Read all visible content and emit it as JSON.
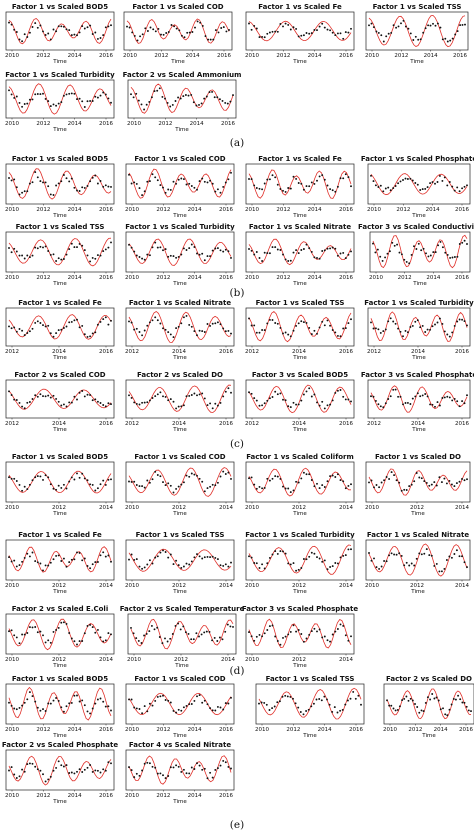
{
  "colors": {
    "model_line": "#e0302a",
    "observed_points": "#111111",
    "axes": "#222222"
  },
  "panel_groups": [
    {
      "label": "(a)",
      "panels": [
        {
          "title": "Factor 1 vs Scaled BOD5",
          "xticks": [
            "2010",
            "2012",
            "2014",
            "2016"
          ],
          "xlabel": "Time"
        },
        {
          "title": "Factor 1 vs Scaled COD",
          "xticks": [
            "2010",
            "2012",
            "2014",
            "2016"
          ],
          "xlabel": "Time"
        },
        {
          "title": "Factor 1 vs Scaled Fe",
          "xticks": [
            "2010",
            "2012",
            "2014",
            "2016"
          ],
          "xlabel": "Time"
        },
        {
          "title": "Factor 1 vs Scaled TSS",
          "xticks": [
            "2010",
            "2012",
            "2014",
            "2016"
          ],
          "xlabel": "Time"
        },
        {
          "title": "Factor 1 vs Scaled Turbidity",
          "xticks": [
            "2010",
            "2012",
            "2014",
            "2016"
          ],
          "xlabel": "Time"
        },
        {
          "title": "Factor 2 vs Scaled Ammonium",
          "xticks": [
            "2010",
            "2012",
            "2014",
            "2016"
          ],
          "xlabel": "Time"
        }
      ]
    },
    {
      "label": "(b)",
      "panels": [
        {
          "title": "Factor 1 vs Scaled BOD5",
          "xticks": [
            "2010",
            "2012",
            "2014",
            "2016"
          ],
          "xlabel": "Time"
        },
        {
          "title": "Factor 1 vs Scaled COD",
          "xticks": [
            "2010",
            "2012",
            "2014",
            "2016"
          ],
          "xlabel": "Time"
        },
        {
          "title": "Factor 1 vs Scaled Fe",
          "xticks": [
            "2010",
            "2012",
            "2014",
            "2016"
          ],
          "xlabel": "Time"
        },
        {
          "title": "Factor 1 vs Scaled Phosphate",
          "xticks": [
            "2010",
            "2012",
            "2014",
            "2016"
          ],
          "xlabel": "Time"
        },
        {
          "title": "Factor 1 vs Scaled TSS",
          "xticks": [
            "2010",
            "2012",
            "2014",
            "2016"
          ],
          "xlabel": "Time"
        },
        {
          "title": "Factor 1 vs Scaled Turbidity",
          "xticks": [
            "2010",
            "2012",
            "2014",
            "2016"
          ],
          "xlabel": "Time"
        },
        {
          "title": "Factor 1 vs Scaled Nitrate",
          "xticks": [
            "2010",
            "2012",
            "2014",
            "2016"
          ],
          "xlabel": "Time"
        },
        {
          "title": "Factor 3 vs Scaled Conductivity",
          "xticks": [
            "2010",
            "2012",
            "2014",
            "2016"
          ],
          "xlabel": "Time"
        }
      ]
    },
    {
      "label": "(c)",
      "panels": [
        {
          "title": "Factor 1 vs Scaled Fe",
          "xticks": [
            "2012",
            "2014",
            "2016"
          ],
          "xlabel": "Time"
        },
        {
          "title": "Factor 1 vs Scaled Nitrate",
          "xticks": [
            "2012",
            "2014",
            "2016"
          ],
          "xlabel": "Time"
        },
        {
          "title": "Factor 1 vs Scaled TSS",
          "xticks": [
            "2012",
            "2014",
            "2016"
          ],
          "xlabel": "Time"
        },
        {
          "title": "Factor 1 vs Scaled Turbidity",
          "xticks": [
            "2012",
            "2014",
            "2016"
          ],
          "xlabel": "Time"
        },
        {
          "title": "Factor 2 vs Scaled COD",
          "xticks": [
            "2012",
            "2014",
            "2016"
          ],
          "xlabel": "Time"
        },
        {
          "title": "Factor 2 vs Scaled DO",
          "xticks": [
            "2012",
            "2014",
            "2016"
          ],
          "xlabel": "Time"
        },
        {
          "title": "Factor 3 vs Scaled BOD5",
          "xticks": [
            "2012",
            "2014",
            "2016"
          ],
          "xlabel": "Time"
        },
        {
          "title": "Factor 3 vs Scaled Phosphate",
          "xticks": [
            "2012",
            "2014",
            "2016"
          ],
          "xlabel": "Time"
        }
      ]
    },
    {
      "label": "(d)",
      "panels": [
        {
          "title": "Factor 1 vs Scaled BOD5",
          "xticks": [
            "2010",
            "2012",
            "2014"
          ],
          "xlabel": "Time"
        },
        {
          "title": "Factor 1 vs Scaled COD",
          "xticks": [
            "2010",
            "2012",
            "2014"
          ],
          "xlabel": "Time"
        },
        {
          "title": "Factor 1 vs Scaled Coliform",
          "xticks": [
            "2010",
            "2012",
            "2014"
          ],
          "xlabel": "Time"
        },
        {
          "title": "Factor 1 vs Scaled DO",
          "xticks": [
            "2010",
            "2012",
            "2014"
          ],
          "xlabel": "Time"
        },
        {
          "title": "Factor 1 vs Scaled Fe",
          "xticks": [
            "2010",
            "2012",
            "2014"
          ],
          "xlabel": "Time"
        },
        {
          "title": "Factor 1 vs Scaled TSS",
          "xticks": [
            "2010",
            "2012",
            "2014"
          ],
          "xlabel": "Time"
        },
        {
          "title": "Factor 1 vs Scaled Turbidity",
          "xticks": [
            "2010",
            "2012",
            "2014"
          ],
          "xlabel": "Time"
        },
        {
          "title": "Factor 1 vs Scaled Nitrate",
          "xticks": [
            "2010",
            "2012",
            "2014"
          ],
          "xlabel": "Time"
        },
        {
          "title": "Factor 2 vs Scaled E.Coli",
          "xticks": [
            "2010",
            "2012",
            "2014"
          ],
          "xlabel": "Time"
        },
        {
          "title": "Factor 2 vs Scaled Temperature",
          "xticks": [
            "2010",
            "2012",
            "2014"
          ],
          "xlabel": "Time"
        },
        {
          "title": "Factor 3 vs Scaled Phosphate",
          "xticks": [
            "2010",
            "2012",
            "2014"
          ],
          "xlabel": "Time"
        }
      ]
    },
    {
      "label": "(e)",
      "panels": [
        {
          "title": "Factor 1 vs Scaled BOD5",
          "xticks": [
            "2010",
            "2012",
            "2014",
            "2016"
          ],
          "xlabel": "Time"
        },
        {
          "title": "Factor 1 vs Scaled COD",
          "xticks": [
            "2010",
            "2012",
            "2014",
            "2016"
          ],
          "xlabel": "Time"
        },
        {
          "title": "Factor 1 vs Scaled TSS",
          "xticks": [
            "2010",
            "2012",
            "2014",
            "2016"
          ],
          "xlabel": "Time"
        },
        {
          "title": "Factor 2 vs Scaled DO",
          "xticks": [
            "2010",
            "2012",
            "2014",
            "2016"
          ],
          "xlabel": "Time"
        },
        {
          "title": "Factor 2 vs Scaled Phosphate",
          "xticks": [
            "2010",
            "2012",
            "2014",
            "2016"
          ],
          "xlabel": "Time"
        },
        {
          "title": "Factor 4 vs Scaled Nitrate",
          "xticks": [
            "2010",
            "2012",
            "2014",
            "2016"
          ],
          "xlabel": "Time"
        }
      ]
    }
  ],
  "chart_data": {
    "type": "line",
    "grid": false,
    "series_style": {
      "model": "red line",
      "observed": "black dots"
    }
  }
}
